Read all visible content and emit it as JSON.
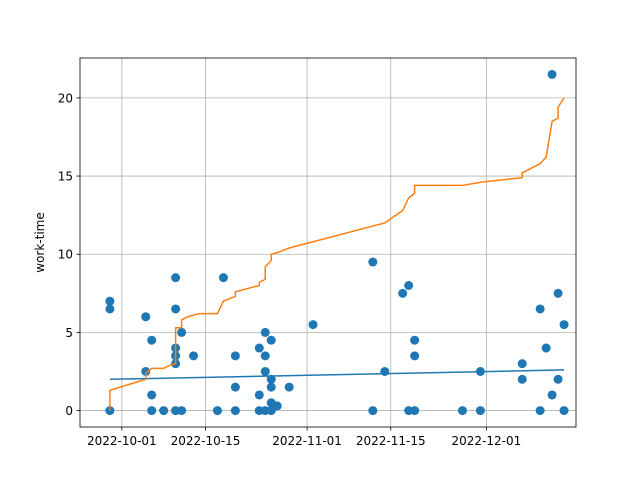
{
  "chart_data": {
    "type": "scatter",
    "ylabel": "work-time",
    "xlabel": "",
    "grid": true,
    "xlim": [
      "2022-09-24",
      "2022-12-16"
    ],
    "ylim": [
      -1.05,
      22.55
    ],
    "x_ticks": [
      "2022-10-01",
      "2022-10-15",
      "2022-11-01",
      "2022-11-15",
      "2022-12-01"
    ],
    "y_ticks": [
      0,
      5,
      10,
      15,
      20
    ],
    "colors": {
      "points": "#1f77b4",
      "trend": "#1f77b4",
      "cumulative": "#ff7f0e",
      "grid": "#b0b0b0"
    },
    "series": [
      {
        "kind": "scatter",
        "points": [
          [
            "2022-09-29",
            0
          ],
          [
            "2022-09-29",
            6.5
          ],
          [
            "2022-09-29",
            7
          ],
          [
            "2022-10-05",
            2.5
          ],
          [
            "2022-10-05",
            6
          ],
          [
            "2022-10-06",
            0
          ],
          [
            "2022-10-06",
            1
          ],
          [
            "2022-10-06",
            4.5
          ],
          [
            "2022-10-08",
            0
          ],
          [
            "2022-10-10",
            0
          ],
          [
            "2022-10-10",
            3
          ],
          [
            "2022-10-10",
            3.5
          ],
          [
            "2022-10-10",
            4
          ],
          [
            "2022-10-10",
            6.5
          ],
          [
            "2022-10-10",
            8.5
          ],
          [
            "2022-10-11",
            0
          ],
          [
            "2022-10-11",
            5
          ],
          [
            "2022-10-13",
            3.5
          ],
          [
            "2022-10-17",
            0
          ],
          [
            "2022-10-18",
            8.5
          ],
          [
            "2022-10-20",
            0
          ],
          [
            "2022-10-20",
            1.5
          ],
          [
            "2022-10-20",
            3.5
          ],
          [
            "2022-10-24",
            0
          ],
          [
            "2022-10-24",
            1
          ],
          [
            "2022-10-24",
            4
          ],
          [
            "2022-10-25",
            0
          ],
          [
            "2022-10-25",
            2.5
          ],
          [
            "2022-10-25",
            3.5
          ],
          [
            "2022-10-25",
            5
          ],
          [
            "2022-10-26",
            0
          ],
          [
            "2022-10-26",
            0.5
          ],
          [
            "2022-10-26",
            1.5
          ],
          [
            "2022-10-26",
            2
          ],
          [
            "2022-10-26",
            4.5
          ],
          [
            "2022-10-27",
            0.3
          ],
          [
            "2022-10-29",
            1.5
          ],
          [
            "2022-11-02",
            5.5
          ],
          [
            "2022-11-12",
            0
          ],
          [
            "2022-11-12",
            9.5
          ],
          [
            "2022-11-14",
            2.5
          ],
          [
            "2022-11-17",
            7.5
          ],
          [
            "2022-11-18",
            0
          ],
          [
            "2022-11-18",
            8
          ],
          [
            "2022-11-19",
            0
          ],
          [
            "2022-11-19",
            3.5
          ],
          [
            "2022-11-19",
            4.5
          ],
          [
            "2022-11-27",
            0
          ],
          [
            "2022-11-30",
            0
          ],
          [
            "2022-11-30",
            2.5
          ],
          [
            "2022-12-07",
            2
          ],
          [
            "2022-12-07",
            3
          ],
          [
            "2022-12-10",
            0
          ],
          [
            "2022-12-10",
            6.5
          ],
          [
            "2022-12-11",
            4
          ],
          [
            "2022-12-12",
            1
          ],
          [
            "2022-12-12",
            21.5
          ],
          [
            "2022-12-13",
            2
          ],
          [
            "2022-12-13",
            7.5
          ],
          [
            "2022-12-14",
            0
          ],
          [
            "2022-12-14",
            5.5
          ]
        ]
      },
      {
        "kind": "line",
        "role": "trend",
        "points": [
          [
            "2022-09-29",
            2.0
          ],
          [
            "2022-12-14",
            2.6
          ]
        ]
      },
      {
        "kind": "line",
        "role": "cumulative",
        "points": [
          [
            "2022-09-29",
            0
          ],
          [
            "2022-09-29",
            1.3
          ],
          [
            "2022-10-05",
            2.0
          ],
          [
            "2022-10-05",
            2.4
          ],
          [
            "2022-10-06",
            2.7
          ],
          [
            "2022-10-08",
            2.7
          ],
          [
            "2022-10-09",
            2.9
          ],
          [
            "2022-10-10",
            3.0
          ],
          [
            "2022-10-10",
            5.3
          ],
          [
            "2022-10-11",
            5.3
          ],
          [
            "2022-10-11",
            5.8
          ],
          [
            "2022-10-12",
            6.0
          ],
          [
            "2022-10-14",
            6.2
          ],
          [
            "2022-10-17",
            6.2
          ],
          [
            "2022-10-18",
            7.0
          ],
          [
            "2022-10-20",
            7.3
          ],
          [
            "2022-10-20",
            7.6
          ],
          [
            "2022-10-23",
            7.9
          ],
          [
            "2022-10-24",
            8.0
          ],
          [
            "2022-10-24",
            8.2
          ],
          [
            "2022-10-25",
            8.4
          ],
          [
            "2022-10-25",
            9.2
          ],
          [
            "2022-10-26",
            9.6
          ],
          [
            "2022-10-26",
            10.0
          ],
          [
            "2022-10-27",
            10.1
          ],
          [
            "2022-10-29",
            10.4
          ],
          [
            "2022-11-02",
            10.8
          ],
          [
            "2022-11-12",
            11.8
          ],
          [
            "2022-11-14",
            12.0
          ],
          [
            "2022-11-17",
            12.8
          ],
          [
            "2022-11-18",
            13.6
          ],
          [
            "2022-11-19",
            13.9
          ],
          [
            "2022-11-19",
            14.4
          ],
          [
            "2022-11-27",
            14.4
          ],
          [
            "2022-11-30",
            14.6
          ],
          [
            "2022-12-07",
            14.9
          ],
          [
            "2022-12-07",
            15.2
          ],
          [
            "2022-12-10",
            15.8
          ],
          [
            "2022-12-11",
            16.2
          ],
          [
            "2022-12-12",
            18.5
          ],
          [
            "2022-12-13",
            18.7
          ],
          [
            "2022-12-13",
            19.4
          ],
          [
            "2022-12-14",
            20.0
          ]
        ]
      }
    ]
  }
}
